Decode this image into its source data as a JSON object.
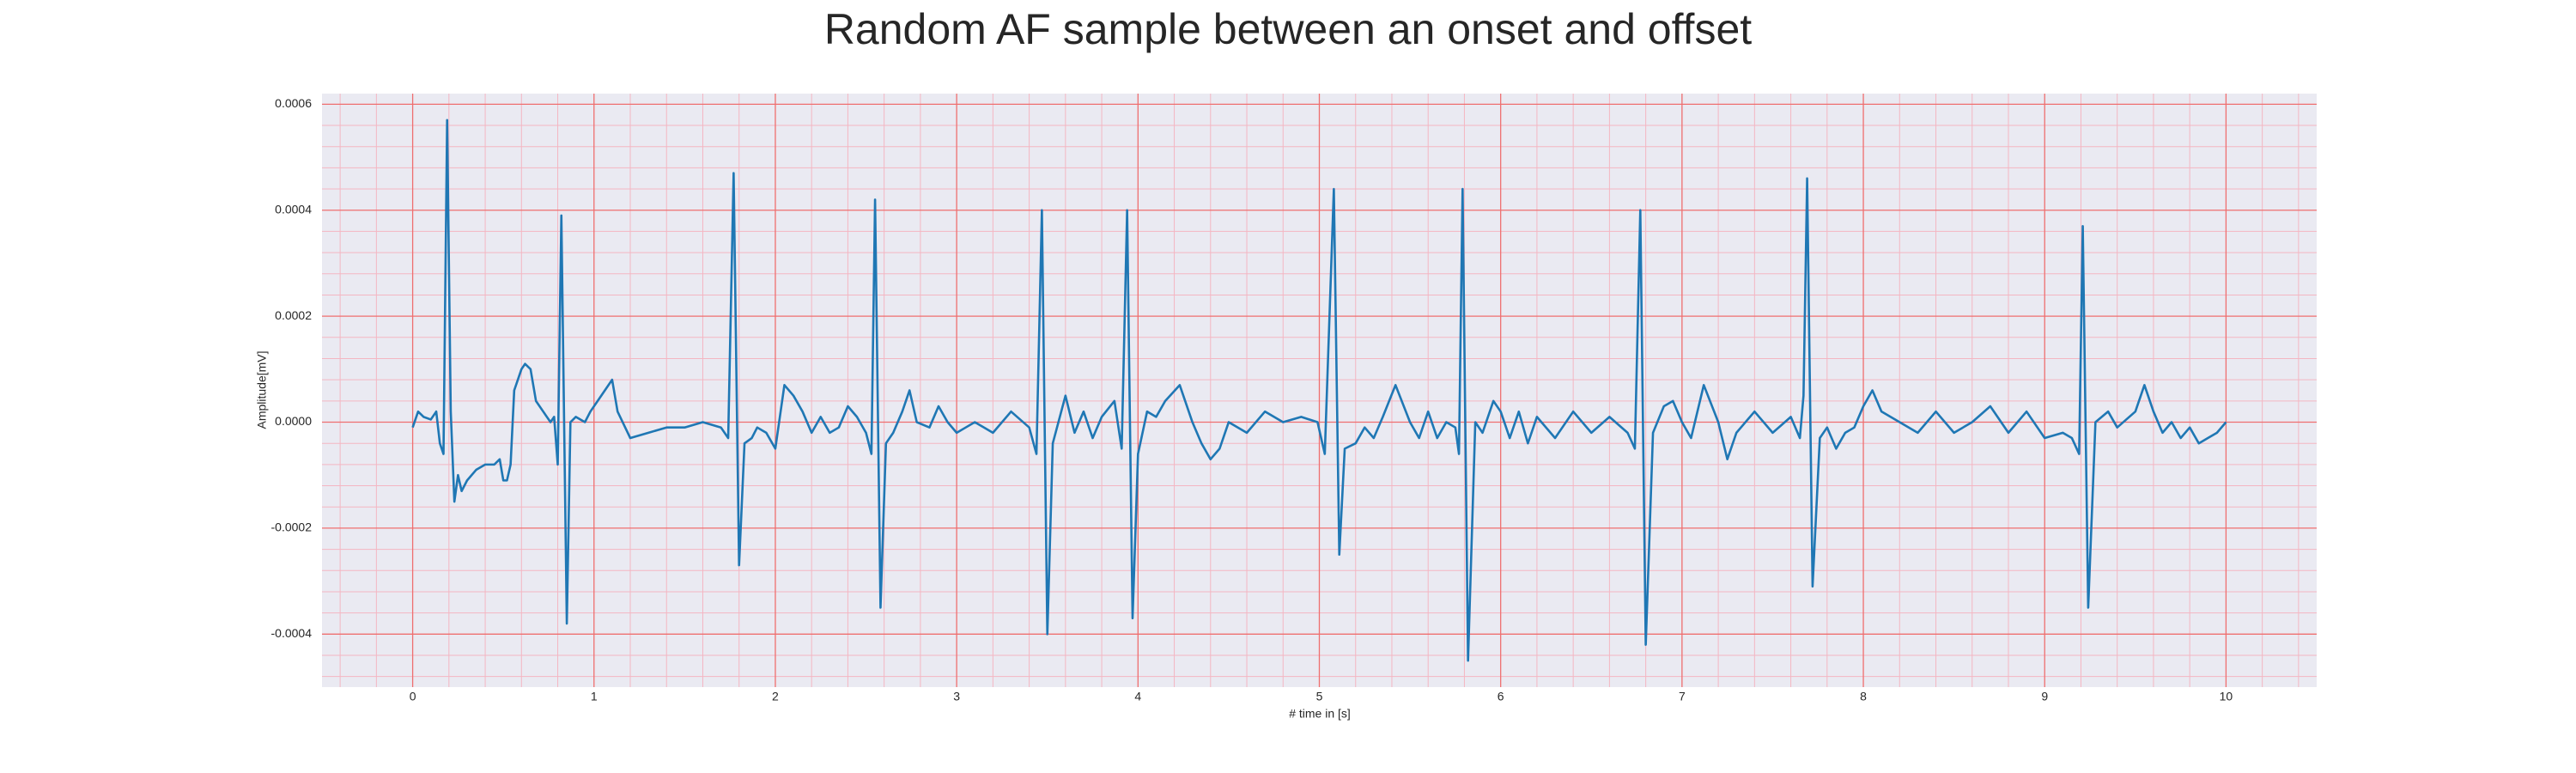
{
  "chart_data": {
    "type": "line",
    "title": "Random AF sample between an onset and offset",
    "x_label": "# time in [s]",
    "y_label": "Amplitude[mV]",
    "color": "#1f77b4",
    "grid": true,
    "xlim": [
      -0.5,
      10.5
    ],
    "ylim": [
      -0.0005,
      0.00062
    ],
    "xticks": [
      0,
      1,
      2,
      3,
      4,
      5,
      6,
      7,
      8,
      9,
      10
    ],
    "yticks": [
      -0.0004,
      -0.0002,
      {
        "value": 0,
        "label": "0.0000"
      },
      0.0002,
      0.0004,
      0.0006
    ],
    "xminor": [
      -0.4,
      -0.2,
      0.2,
      0.4,
      0.6,
      0.8,
      1.2,
      1.4,
      1.6,
      1.8,
      2.2,
      2.4,
      2.6,
      2.8,
      3.2,
      3.4,
      3.6,
      3.8,
      4.2,
      4.4,
      4.6,
      4.8,
      5.2,
      5.4,
      5.6,
      5.8,
      6.2,
      6.4,
      6.6,
      6.8,
      7.2,
      7.4,
      7.6,
      7.8,
      8.2,
      8.4,
      8.6,
      8.8,
      9.2,
      9.4,
      9.6,
      9.8,
      10.2,
      10.4
    ],
    "yminor": [
      -0.00048,
      -0.00044,
      -0.00036,
      -0.00032,
      -0.00028,
      -0.00024,
      -0.00016,
      -0.00012,
      -8e-05,
      -4e-05,
      4e-05,
      8e-05,
      0.00012,
      0.00016,
      0.00024,
      0.00028,
      0.00032,
      0.00036,
      0.00044,
      0.00048,
      0.00052,
      0.00056
    ],
    "x": [
      0,
      0.03,
      0.06,
      0.1,
      0.13,
      0.15,
      0.17,
      0.19,
      0.21,
      0.23,
      0.25,
      0.27,
      0.3,
      0.35,
      0.4,
      0.45,
      0.48,
      0.5,
      0.52,
      0.54,
      0.56,
      0.6,
      0.62,
      0.65,
      0.68,
      0.72,
      0.76,
      0.78,
      0.8,
      0.82,
      0.85,
      0.87,
      0.9,
      0.95,
      0.98,
      1.02,
      1.1,
      1.13,
      1.2,
      1.3,
      1.4,
      1.5,
      1.6,
      1.7,
      1.74,
      1.77,
      1.8,
      1.83,
      1.87,
      1.9,
      1.95,
      2.0,
      2.05,
      2.1,
      2.15,
      2.2,
      2.25,
      2.3,
      2.35,
      2.4,
      2.45,
      2.5,
      2.53,
      2.55,
      2.58,
      2.61,
      2.65,
      2.7,
      2.74,
      2.78,
      2.85,
      2.9,
      2.95,
      3.0,
      3.05,
      3.1,
      3.2,
      3.3,
      3.4,
      3.44,
      3.47,
      3.5,
      3.53,
      3.6,
      3.65,
      3.7,
      3.75,
      3.8,
      3.87,
      3.91,
      3.94,
      3.97,
      4.0,
      4.05,
      4.1,
      4.15,
      4.23,
      4.3,
      4.35,
      4.4,
      4.45,
      4.5,
      4.6,
      4.7,
      4.8,
      4.9,
      4.99,
      5.03,
      5.08,
      5.11,
      5.14,
      5.2,
      5.25,
      5.3,
      5.35,
      5.42,
      5.5,
      5.55,
      5.6,
      5.65,
      5.7,
      5.75,
      5.77,
      5.79,
      5.82,
      5.86,
      5.9,
      5.96,
      6.0,
      6.05,
      6.1,
      6.15,
      6.2,
      6.3,
      6.4,
      6.5,
      6.6,
      6.7,
      6.74,
      6.77,
      6.8,
      6.84,
      6.9,
      6.95,
      7.0,
      7.05,
      7.12,
      7.2,
      7.25,
      7.3,
      7.4,
      7.5,
      7.6,
      7.65,
      7.67,
      7.69,
      7.72,
      7.76,
      7.8,
      7.85,
      7.9,
      7.95,
      8.0,
      8.05,
      8.1,
      8.2,
      8.3,
      8.4,
      8.5,
      8.6,
      8.7,
      8.8,
      8.9,
      9.0,
      9.1,
      9.15,
      9.19,
      9.21,
      9.24,
      9.28,
      9.35,
      9.4,
      9.5,
      9.55,
      9.6,
      9.65,
      9.7,
      9.75,
      9.8,
      9.85,
      9.9,
      9.95,
      10.0
    ],
    "values": [
      -1e-05,
      2e-05,
      1e-05,
      5e-06,
      2e-05,
      -4e-05,
      -6e-05,
      0.00057,
      2e-05,
      -0.00015,
      -0.0001,
      -0.00013,
      -0.00011,
      -9e-05,
      -8e-05,
      -8e-05,
      -7e-05,
      -0.00011,
      -0.00011,
      -8e-05,
      6e-05,
      0.0001,
      0.00011,
      0.0001,
      4e-05,
      2e-05,
      0,
      1e-05,
      -8e-05,
      0.00039,
      -0.00038,
      0,
      1e-05,
      0,
      2e-05,
      4e-05,
      8e-05,
      2e-05,
      -3e-05,
      -2e-05,
      -1e-05,
      -1e-05,
      0,
      -1e-05,
      -3e-05,
      0.00047,
      -0.00027,
      -4e-05,
      -3e-05,
      -1e-05,
      -2e-05,
      -5e-05,
      7e-05,
      5e-05,
      2e-05,
      -2e-05,
      1e-05,
      -2e-05,
      -1e-05,
      3e-05,
      1e-05,
      -2e-05,
      -6e-05,
      0.00042,
      -0.00035,
      -4e-05,
      -2e-05,
      2e-05,
      6e-05,
      0,
      -1e-05,
      3e-05,
      0,
      -2e-05,
      -1e-05,
      0,
      -2e-05,
      2e-05,
      -1e-05,
      -6e-05,
      0.0004,
      -0.0004,
      -4e-05,
      5e-05,
      -2e-05,
      2e-05,
      -3e-05,
      1e-05,
      4e-05,
      -5e-05,
      0.0004,
      -0.00037,
      -6e-05,
      2e-05,
      1e-05,
      4e-05,
      7e-05,
      0,
      -4e-05,
      -7e-05,
      -5e-05,
      0,
      -2e-05,
      2e-05,
      0,
      1e-05,
      0,
      -6e-05,
      0.00044,
      -0.00025,
      -5e-05,
      -4e-05,
      -1e-05,
      -3e-05,
      1e-05,
      7e-05,
      0,
      -3e-05,
      2e-05,
      -3e-05,
      0,
      -1e-05,
      -6e-05,
      0.00044,
      -0.00045,
      0,
      -2e-05,
      4e-05,
      2e-05,
      -3e-05,
      2e-05,
      -4e-05,
      1e-05,
      -3e-05,
      2e-05,
      -2e-05,
      1e-05,
      -2e-05,
      -5e-05,
      0.0004,
      -0.00042,
      -2e-05,
      3e-05,
      4e-05,
      0,
      -3e-05,
      7e-05,
      0,
      -7e-05,
      -2e-05,
      2e-05,
      -2e-05,
      1e-05,
      -3e-05,
      5e-05,
      0.00046,
      -0.00031,
      -3e-05,
      -1e-05,
      -5e-05,
      -2e-05,
      -1e-05,
      3e-05,
      6e-05,
      2e-05,
      0,
      -2e-05,
      2e-05,
      -2e-05,
      0,
      3e-05,
      -2e-05,
      2e-05,
      -3e-05,
      -2e-05,
      -3e-05,
      -6e-05,
      0.00037,
      -0.00035,
      0,
      2e-05,
      -1e-05,
      2e-05,
      7e-05,
      2e-05,
      -2e-05,
      0,
      -3e-05,
      -1e-05,
      -4e-05,
      -3e-05,
      -2e-05,
      0
    ]
  }
}
